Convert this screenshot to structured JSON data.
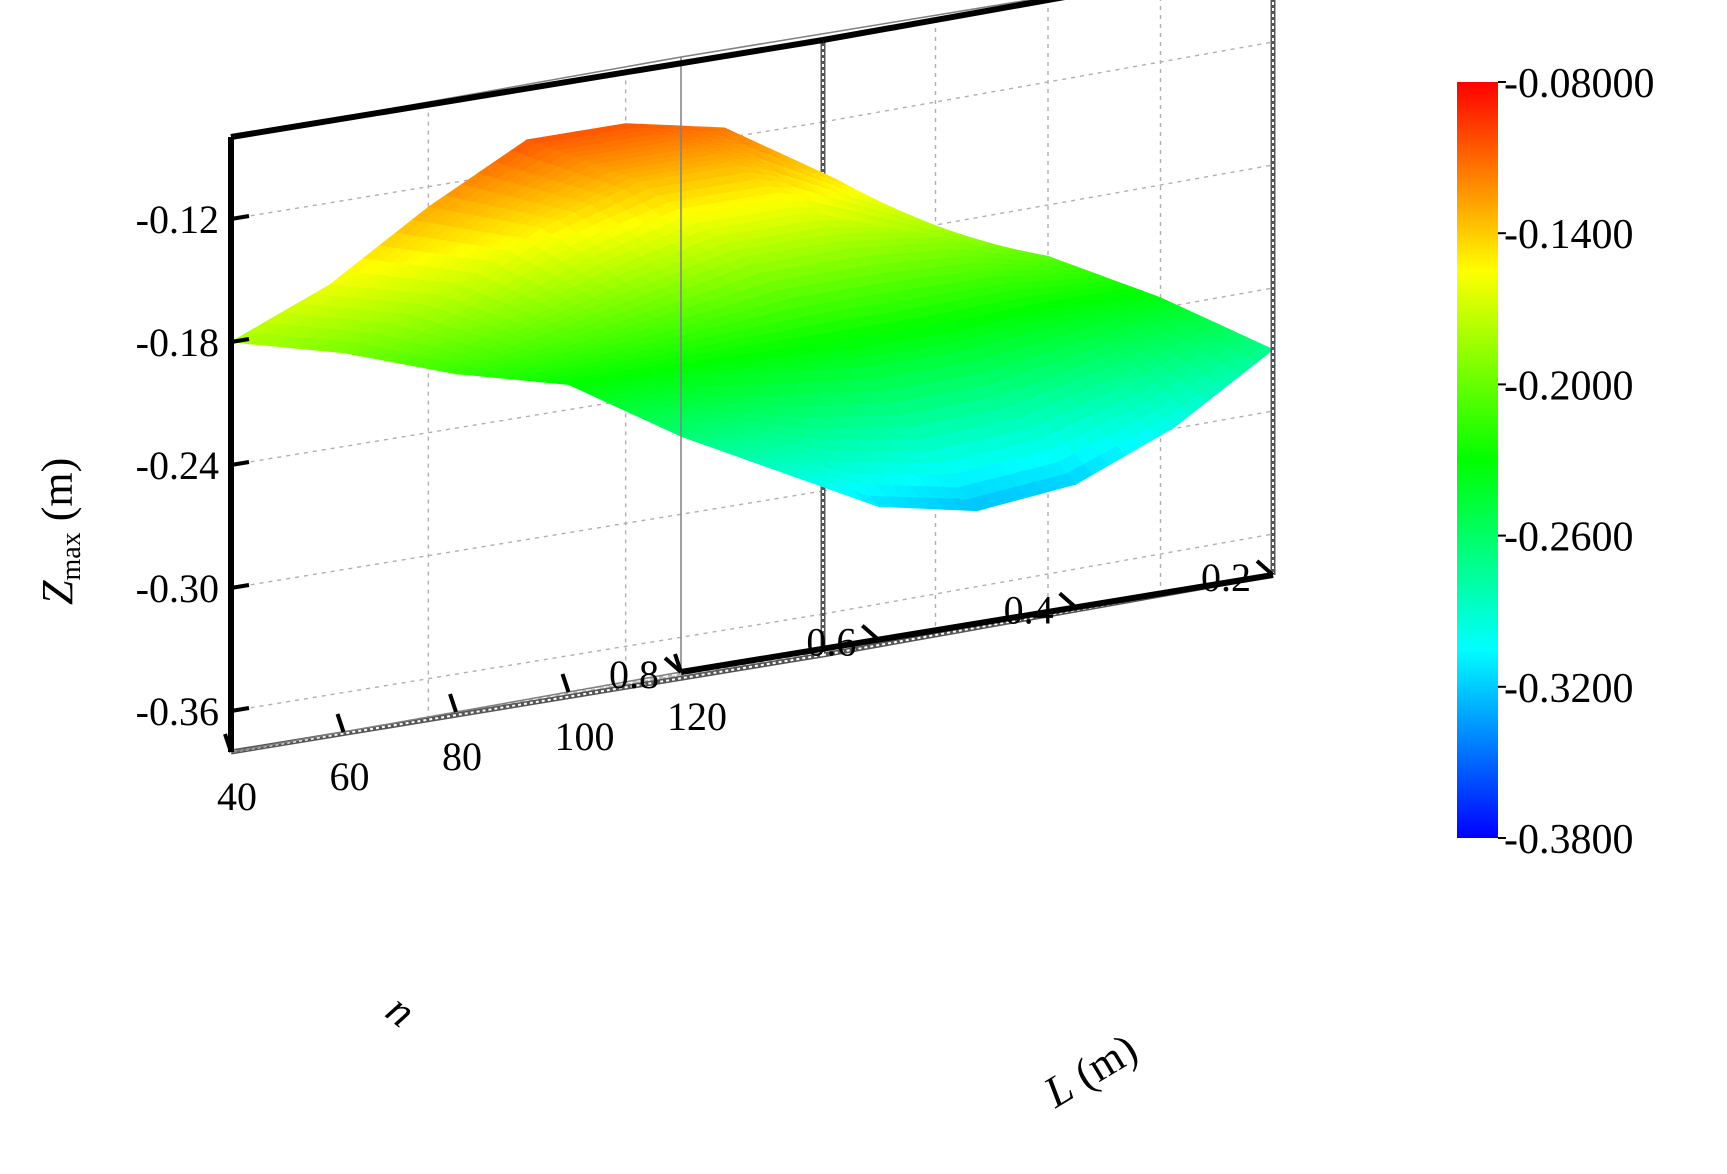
{
  "chart_data": {
    "type": "surface3d",
    "x_axis": {
      "label_italic": "L",
      "label_rest": " (m)",
      "min": 40,
      "max": 120,
      "ticks": [
        "40",
        "60",
        "80",
        "100",
        "120"
      ]
    },
    "y_axis": {
      "label_italic": "n",
      "label_rest": "",
      "min": 0.2,
      "max": 0.8,
      "ticks": [
        "0.2",
        "0.4",
        "0.6",
        "0.8"
      ]
    },
    "z_axis": {
      "label_main": "Z",
      "label_sub": "max",
      "label_rest": " (m)",
      "min": -0.38,
      "max": -0.08,
      "ticks": [
        "-0.12",
        "-0.18",
        "-0.24",
        "-0.30",
        "-0.36"
      ]
    },
    "colorbar": {
      "min": -0.38,
      "max": -0.08,
      "ticks": [
        "-0.08000",
        "-0.1400",
        "-0.2000",
        "-0.2600",
        "-0.3200",
        "-0.3800"
      ],
      "colormap": [
        "#0000ff",
        "#00ffff",
        "#00ff00",
        "#ffff00",
        "#ff0000"
      ]
    },
    "grid": true,
    "surface": {
      "L": [
        40,
        60,
        80,
        100,
        120
      ],
      "n": [
        0.2,
        0.3,
        0.4,
        0.5,
        0.6,
        0.7,
        0.8
      ],
      "z": [
        [
          -0.165,
          -0.115,
          -0.105,
          -0.105,
          -0.13,
          -0.16,
          -0.18
        ],
        [
          -0.185,
          -0.15,
          -0.135,
          -0.135,
          -0.15,
          -0.175,
          -0.195
        ],
        [
          -0.205,
          -0.19,
          -0.185,
          -0.185,
          -0.195,
          -0.205,
          -0.215
        ],
        [
          -0.235,
          -0.24,
          -0.245,
          -0.245,
          -0.24,
          -0.235,
          -0.23
        ],
        [
          -0.27,
          -0.3,
          -0.32,
          -0.325,
          -0.315,
          -0.29,
          -0.265
        ]
      ]
    }
  }
}
